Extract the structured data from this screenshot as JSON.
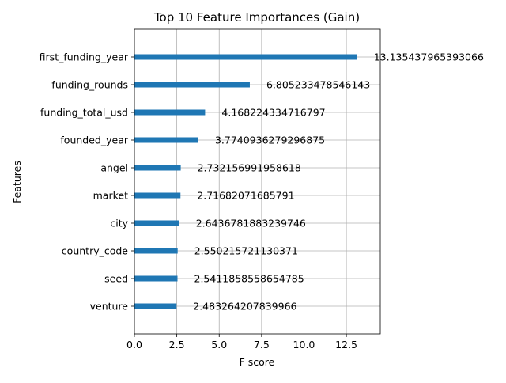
{
  "chart_data": {
    "type": "bar",
    "orientation": "horizontal",
    "title": "Top 10 Feature Importances (Gain)",
    "xlabel": "F score",
    "ylabel": "Features",
    "xlim": [
      0,
      14.5
    ],
    "xticks": [
      0,
      2.5,
      5,
      7.5,
      10,
      12.5
    ],
    "xtick_labels": [
      "0.0",
      "2.5",
      "5.0",
      "7.5",
      "10.0",
      "12.5"
    ],
    "grid": true,
    "bar_color": "#1f77b4",
    "grid_color": "#b0b0b0",
    "categories": [
      "first_funding_year",
      "funding_rounds",
      "funding_total_usd",
      "founded_year",
      "angel",
      "market",
      "city",
      "country_code",
      "seed",
      "venture"
    ],
    "values": [
      13.135437965393066,
      6.805233478546143,
      4.168224334716797,
      3.7740936279296875,
      2.732156991958618,
      2.71682071685791,
      2.6436781883239746,
      2.550215721130371,
      2.5411858558654785,
      2.483264207839966
    ],
    "value_labels": [
      "13.135437965393066",
      "6.805233478546143",
      "4.168224334716797",
      "3.7740936279296875",
      "2.732156991958618",
      "2.71682071685791",
      "2.6436781883239746",
      "2.550215721130371",
      "2.5411858558654785",
      "2.483264207839966"
    ]
  }
}
